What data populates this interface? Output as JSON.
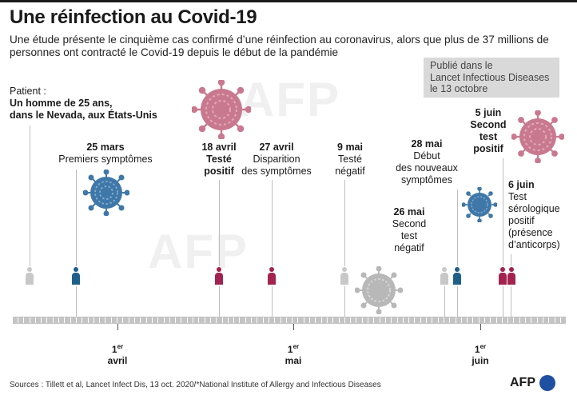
{
  "title": "Une réinfection au Covid-19",
  "subtitle": "Une étude présente le cinquième cas confirmé d’une réinfection au coronavirus, alors que plus de 37 millions de personnes ont contracté le Covid-19 depuis le début de la pandémie",
  "publication": {
    "line1": "Publié dans le",
    "line2": "Lancet Infectious Diseases",
    "line3": "le 13 octobre"
  },
  "patient": {
    "label": "Patient :",
    "line1": "Un homme de 25 ans,",
    "line2": "dans le Nevada, aux États-Unis"
  },
  "events": {
    "mar25": {
      "date": "25 mars",
      "text1": "Premiers symptômes"
    },
    "apr18": {
      "date": "18 avril",
      "text1": "Testé",
      "text2": "positif"
    },
    "apr27": {
      "date": "27 avril",
      "text1": "Disparition",
      "text2": "des symptômes"
    },
    "may9": {
      "date": "9 mai",
      "text1": "Testé",
      "text2": "négatif"
    },
    "may26": {
      "date": "26 mai",
      "text1": "Second",
      "text2": "test",
      "text3": "négatif"
    },
    "may28": {
      "date": "28 mai",
      "text1": "Début",
      "text2": "des nouveaux",
      "text3": "symptômes"
    },
    "jun5": {
      "date": "5 juin",
      "text1": "Second",
      "text2": "test",
      "text3": "positif"
    },
    "jun6": {
      "date": "6 juin",
      "text1": "Test",
      "text2": "sérologique",
      "text3": "positif",
      "text4": "(présence",
      "text5": "d’anticorps)"
    }
  },
  "months": [
    {
      "day": "1",
      "sup": "er",
      "name": "avril"
    },
    {
      "day": "1",
      "sup": "er",
      "name": "mai"
    },
    {
      "day": "1",
      "sup": "er",
      "name": "juin"
    }
  ],
  "source": "Sources : Tillett et al, Lancet Infect Dis, 13 oct. 2020/*National Institute of Allergy and Infectious Diseases",
  "logo": "AFP",
  "watermark": "AFP",
  "colors": {
    "neutral": "#c8c8c8",
    "blue": "#1e5f8a",
    "crimson": "#a3234f",
    "virus_pink": "#c9798f",
    "virus_blue": "#3f78a8",
    "virus_gray": "#b8b8b8"
  }
}
